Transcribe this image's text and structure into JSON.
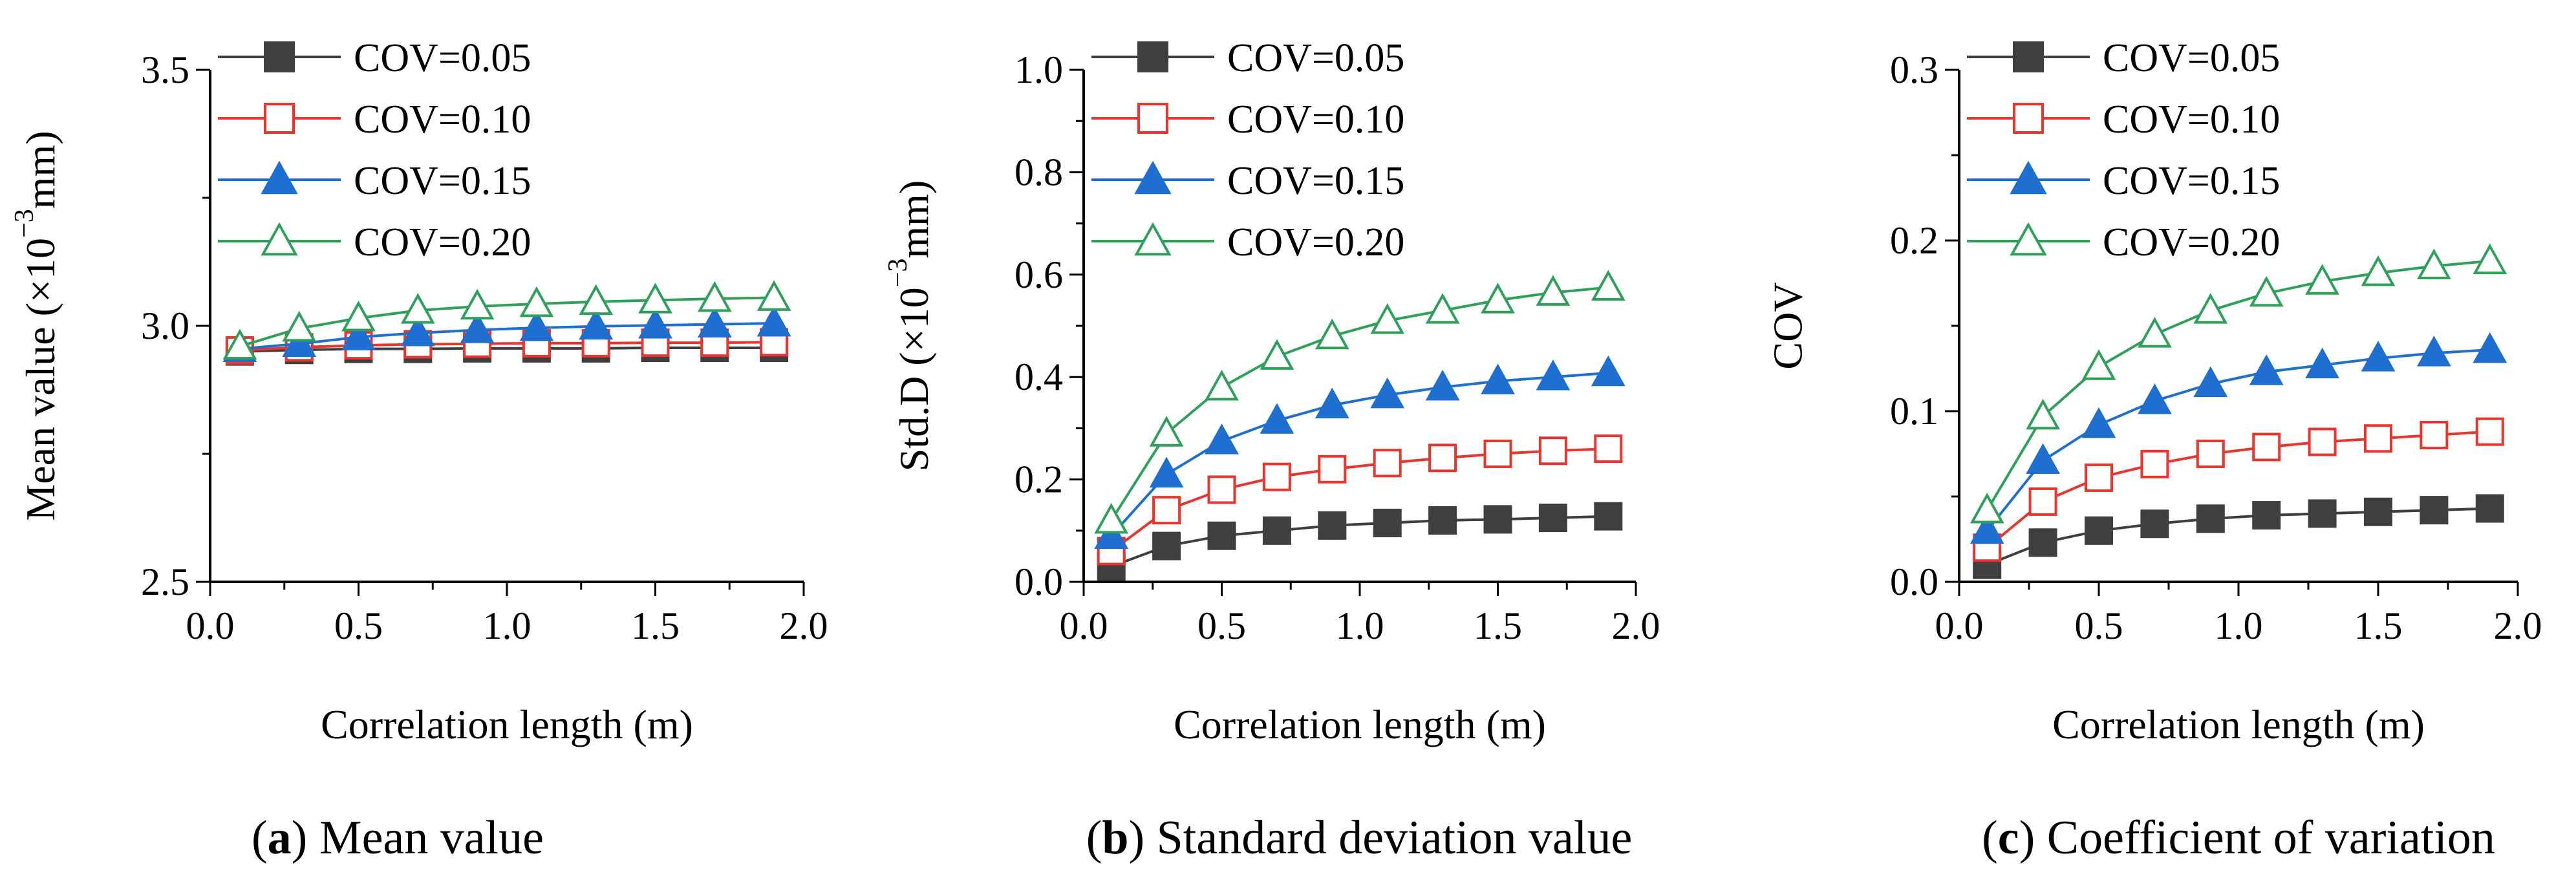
{
  "figure": {
    "panels": [
      {
        "letter": "a",
        "title": "Mean value"
      },
      {
        "letter": "b",
        "title": "Standard deviation value"
      },
      {
        "letter": "c",
        "title": "Coefficient of variation"
      }
    ]
  },
  "chart_data": [
    {
      "type": "line",
      "title": "Mean value",
      "xlabel": "Correlation length (m)",
      "ylabel": "Mean value (×10⁻³mm)",
      "ylabel_parts": {
        "pre": "Mean value (×10",
        "sup": "−3",
        "post": "mm)"
      },
      "xlim": [
        0.0,
        2.0
      ],
      "ylim": [
        2.5,
        3.5
      ],
      "xticks": [
        "0.0",
        "0.5",
        "1.0",
        "1.5",
        "2.0"
      ],
      "yticks": [
        "2.5",
        "3.0",
        "3.5"
      ],
      "x": [
        0.1,
        0.3,
        0.5,
        0.7,
        0.9,
        1.1,
        1.3,
        1.5,
        1.7,
        1.9
      ],
      "legend_position": "top-left",
      "series": [
        {
          "name": "COV=0.05",
          "color": "#3f3f3f",
          "marker": "square-filled",
          "values": [
            2.95,
            2.953,
            2.955,
            2.955,
            2.956,
            2.956,
            2.956,
            2.957,
            2.957,
            2.957
          ]
        },
        {
          "name": "COV=0.10",
          "color": "#e8352e",
          "marker": "square-open",
          "values": [
            2.952,
            2.958,
            2.962,
            2.964,
            2.965,
            2.966,
            2.966,
            2.967,
            2.967,
            2.968
          ]
        },
        {
          "name": "COV=0.15",
          "color": "#1f6fd1",
          "marker": "triangle-filled",
          "values": [
            2.955,
            2.965,
            2.978,
            2.986,
            2.992,
            2.996,
            2.999,
            3.001,
            3.003,
            3.005
          ]
        },
        {
          "name": "COV=0.20",
          "color": "#2ea05a",
          "marker": "triangle-open",
          "values": [
            2.96,
            2.995,
            3.015,
            3.03,
            3.038,
            3.043,
            3.047,
            3.05,
            3.053,
            3.055
          ]
        }
      ]
    },
    {
      "type": "line",
      "title": "Standard deviation value",
      "xlabel": "Correlation length (m)",
      "ylabel": "Std.D (×10⁻³mm)",
      "ylabel_parts": {
        "pre": "Std.D (×10",
        "sup": "−3",
        "post": "mm)"
      },
      "xlim": [
        0.0,
        2.0
      ],
      "ylim": [
        0.0,
        1.0
      ],
      "xticks": [
        "0.0",
        "0.5",
        "1.0",
        "1.5",
        "2.0"
      ],
      "yticks": [
        "0.0",
        "0.2",
        "0.4",
        "0.6",
        "0.8",
        "1.0"
      ],
      "x": [
        0.1,
        0.3,
        0.5,
        0.7,
        0.9,
        1.1,
        1.3,
        1.5,
        1.7,
        1.9
      ],
      "legend_position": "top-left",
      "series": [
        {
          "name": "COV=0.05",
          "color": "#3f3f3f",
          "marker": "square-filled",
          "values": [
            0.03,
            0.07,
            0.09,
            0.1,
            0.11,
            0.115,
            0.12,
            0.122,
            0.125,
            0.128
          ]
        },
        {
          "name": "COV=0.10",
          "color": "#e8352e",
          "marker": "square-open",
          "values": [
            0.06,
            0.14,
            0.18,
            0.205,
            0.22,
            0.232,
            0.242,
            0.25,
            0.256,
            0.26
          ]
        },
        {
          "name": "COV=0.15",
          "color": "#1f6fd1",
          "marker": "triangle-filled",
          "values": [
            0.09,
            0.21,
            0.275,
            0.315,
            0.345,
            0.365,
            0.38,
            0.392,
            0.4,
            0.408
          ]
        },
        {
          "name": "COV=0.20",
          "color": "#2ea05a",
          "marker": "triangle-open",
          "values": [
            0.12,
            0.29,
            0.38,
            0.44,
            0.48,
            0.51,
            0.53,
            0.55,
            0.565,
            0.575
          ]
        }
      ]
    },
    {
      "type": "line",
      "title": "Coefficient of variation",
      "xlabel": "Correlation length (m)",
      "ylabel": "COV",
      "xlim": [
        0.0,
        2.0
      ],
      "ylim": [
        0.0,
        0.3
      ],
      "xticks": [
        "0.0",
        "0.5",
        "1.0",
        "1.5",
        "2.0"
      ],
      "yticks": [
        "0.0",
        "0.1",
        "0.2",
        "0.3"
      ],
      "x": [
        0.1,
        0.3,
        0.5,
        0.7,
        0.9,
        1.1,
        1.3,
        1.5,
        1.7,
        1.9
      ],
      "legend_position": "top-left",
      "series": [
        {
          "name": "COV=0.05",
          "color": "#3f3f3f",
          "marker": "square-filled",
          "values": [
            0.01,
            0.023,
            0.03,
            0.034,
            0.037,
            0.039,
            0.04,
            0.041,
            0.042,
            0.043
          ]
        },
        {
          "name": "COV=0.10",
          "color": "#e8352e",
          "marker": "square-open",
          "values": [
            0.02,
            0.047,
            0.061,
            0.069,
            0.075,
            0.079,
            0.082,
            0.084,
            0.086,
            0.088
          ]
        },
        {
          "name": "COV=0.15",
          "color": "#1f6fd1",
          "marker": "triangle-filled",
          "values": [
            0.03,
            0.071,
            0.092,
            0.106,
            0.116,
            0.123,
            0.127,
            0.131,
            0.134,
            0.136
          ]
        },
        {
          "name": "COV=0.20",
          "color": "#2ea05a",
          "marker": "triangle-open",
          "values": [
            0.042,
            0.097,
            0.126,
            0.145,
            0.159,
            0.169,
            0.176,
            0.181,
            0.185,
            0.188
          ]
        }
      ]
    }
  ]
}
